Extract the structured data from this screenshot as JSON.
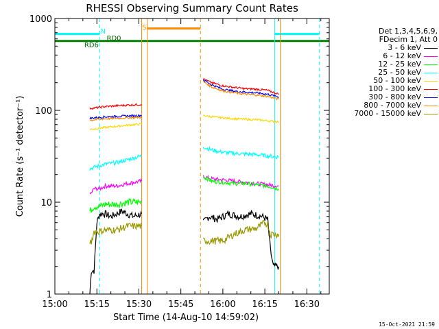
{
  "chart_data": {
    "type": "line",
    "title": "RHESSI Observing Summary Count Rates",
    "xlabel": "Start Time (14-Aug-10 14:59:02)",
    "ylabel": "Count Rate (s⁻¹ detector⁻¹)",
    "x_units": "minutes since 15:00",
    "xlim": [
      0,
      98
    ],
    "ylim": [
      1,
      1000
    ],
    "yscale": "log",
    "x_ticks": [
      {
        "value": 0,
        "label": "15:00"
      },
      {
        "value": 15,
        "label": "15:15"
      },
      {
        "value": 30,
        "label": "15:30"
      },
      {
        "value": 45,
        "label": "15:45"
      },
      {
        "value": 60,
        "label": "16:00"
      },
      {
        "value": 75,
        "label": "16:15"
      },
      {
        "value": 90,
        "label": "16:30"
      }
    ],
    "y_ticks": [
      {
        "value": 1,
        "label": "1"
      },
      {
        "value": 10,
        "label": "10"
      },
      {
        "value": 100,
        "label": "100"
      },
      {
        "value": 1000,
        "label": "1000"
      }
    ],
    "legend_header": [
      "Det 1,3,4,5,6,9,",
      "FDecim 1, Att 0"
    ],
    "series": [
      {
        "name": "3 - 6 keV",
        "color": "#000000",
        "segments": [
          [
            [
              12.5,
              1
            ],
            [
              13,
              1.8
            ],
            [
              14,
              1.8
            ],
            [
              15,
              6
            ],
            [
              16,
              7.5
            ],
            [
              18,
              7.5
            ],
            [
              20,
              7
            ],
            [
              24,
              8
            ],
            [
              28,
              7
            ],
            [
              31,
              7.5
            ]
          ],
          [
            [
              53,
              6
            ],
            [
              55,
              7
            ],
            [
              58,
              6.5
            ],
            [
              62,
              7.5
            ],
            [
              66,
              7
            ],
            [
              70,
              7.5
            ],
            [
              74,
              7
            ],
            [
              76,
              6.5
            ],
            [
              77,
              3
            ],
            [
              78,
              2
            ],
            [
              80,
              2
            ]
          ]
        ]
      },
      {
        "name": "6 - 12 keV",
        "color": "#ff00ff",
        "segments": [
          [
            [
              12.5,
              12
            ],
            [
              14,
              14
            ],
            [
              16,
              14
            ],
            [
              18,
              15
            ],
            [
              22,
              15
            ],
            [
              26,
              16
            ],
            [
              31,
              17
            ]
          ],
          [
            [
              53,
              19
            ],
            [
              56,
              18
            ],
            [
              60,
              17.5
            ],
            [
              64,
              17
            ],
            [
              68,
              16.5
            ],
            [
              72,
              16
            ],
            [
              76,
              15.5
            ],
            [
              80,
              15
            ]
          ]
        ]
      },
      {
        "name": "12 - 25 keV",
        "color": "#00ff00",
        "segments": [
          [
            [
              12.5,
              8
            ],
            [
              14,
              9
            ],
            [
              16,
              9
            ],
            [
              18,
              9.5
            ],
            [
              22,
              9.5
            ],
            [
              26,
              10
            ],
            [
              31,
              10
            ]
          ],
          [
            [
              53,
              19
            ],
            [
              56,
              17
            ],
            [
              60,
              16.5
            ],
            [
              64,
              16
            ],
            [
              68,
              16
            ],
            [
              72,
              15.5
            ],
            [
              76,
              15
            ],
            [
              80,
              14
            ]
          ]
        ]
      },
      {
        "name": "25 - 50 keV",
        "color": "#00ffff",
        "segments": [
          [
            [
              12.5,
              23
            ],
            [
              14,
              24
            ],
            [
              16,
              25
            ],
            [
              18,
              26
            ],
            [
              22,
              27
            ],
            [
              26,
              29
            ],
            [
              31,
              32
            ]
          ],
          [
            [
              53,
              40
            ],
            [
              56,
              37
            ],
            [
              60,
              35
            ],
            [
              64,
              34
            ],
            [
              68,
              33.5
            ],
            [
              72,
              33
            ],
            [
              76,
              32
            ],
            [
              80,
              31
            ]
          ]
        ]
      },
      {
        "name": "50 - 100 keV",
        "color": "#ffd700",
        "segments": [
          [
            [
              12.5,
              62
            ],
            [
              14,
              63
            ],
            [
              16,
              64
            ],
            [
              18,
              65
            ],
            [
              22,
              67
            ],
            [
              26,
              69
            ],
            [
              31,
              71
            ]
          ],
          [
            [
              53,
              88
            ],
            [
              56,
              85
            ],
            [
              60,
              83
            ],
            [
              64,
              81
            ],
            [
              68,
              80
            ],
            [
              72,
              79
            ],
            [
              76,
              77
            ],
            [
              80,
              75
            ]
          ]
        ]
      },
      {
        "name": "100 - 300 keV",
        "color": "#ff0000",
        "segments": [
          [
            [
              12.5,
              105
            ],
            [
              14,
              106
            ],
            [
              16,
              108
            ],
            [
              18,
              110
            ],
            [
              22,
              112
            ],
            [
              26,
              114
            ],
            [
              31,
              116
            ]
          ],
          [
            [
              53,
              220
            ],
            [
              56,
              200
            ],
            [
              60,
              185
            ],
            [
              64,
              178
            ],
            [
              68,
              172
            ],
            [
              72,
              170
            ],
            [
              76,
              165
            ],
            [
              80,
              150
            ]
          ]
        ]
      },
      {
        "name": "300 - 800 keV",
        "color": "#0000ff",
        "segments": [
          [
            [
              12.5,
              82
            ],
            [
              14,
              83
            ],
            [
              16,
              84
            ],
            [
              18,
              85
            ],
            [
              22,
              86
            ],
            [
              26,
              87
            ],
            [
              31,
              88
            ]
          ],
          [
            [
              53,
              215
            ],
            [
              56,
              190
            ],
            [
              60,
              170
            ],
            [
              64,
              162
            ],
            [
              68,
              158
            ],
            [
              72,
              155
            ],
            [
              76,
              150
            ],
            [
              80,
              140
            ]
          ]
        ]
      },
      {
        "name": "800 - 7000 keV",
        "color": "#ff8c00",
        "segments": [
          [
            [
              12.5,
              78
            ],
            [
              14,
              79
            ],
            [
              16,
              80
            ],
            [
              18,
              81
            ],
            [
              22,
              82
            ],
            [
              26,
              83
            ],
            [
              31,
              84
            ]
          ],
          [
            [
              53,
              205
            ],
            [
              56,
              180
            ],
            [
              60,
              163
            ],
            [
              64,
              155
            ],
            [
              68,
              150
            ],
            [
              72,
              147
            ],
            [
              76,
              142
            ],
            [
              80,
              132
            ]
          ]
        ]
      },
      {
        "name": "7000 - 15000 keV",
        "color": "#999900",
        "segments": [
          [
            [
              12.5,
              3.7
            ],
            [
              13,
              3.7
            ],
            [
              14,
              4.8
            ],
            [
              16,
              4.8
            ],
            [
              18,
              5
            ],
            [
              22,
              5
            ],
            [
              26,
              5.5
            ],
            [
              31,
              5.5
            ]
          ],
          [
            [
              53,
              3.8
            ],
            [
              56,
              3.8
            ],
            [
              60,
              3.8
            ],
            [
              64,
              4.5
            ],
            [
              68,
              5
            ],
            [
              72,
              5.2
            ],
            [
              75,
              6
            ],
            [
              76,
              5.8
            ],
            [
              77,
              4.5
            ],
            [
              79,
              4.5
            ],
            [
              80,
              4.5
            ]
          ]
        ]
      }
    ],
    "annotations": [
      {
        "label": "N",
        "x": 16.3,
        "color": "#00ffff"
      },
      {
        "label": "RD0",
        "x": 18.5,
        "color": "#006400"
      },
      {
        "label": "RD6",
        "x": 10.5,
        "color": "#006400"
      },
      {
        "label": "S",
        "x": 31.2,
        "color": "#ff8c00"
      }
    ],
    "flag_bars": [
      {
        "name": "night",
        "color": "#00ffff",
        "x_start": 0,
        "x_end": 16,
        "y": 680
      },
      {
        "name": "night",
        "color": "#00ffff",
        "x_start": 78.5,
        "x_end": 94.5,
        "y": 680
      },
      {
        "name": "saa",
        "color": "#ff8c00",
        "x_start": 33,
        "x_end": 52,
        "y": 780
      },
      {
        "name": "decimation",
        "color": "#008000",
        "x_start": 0,
        "x_end": 98,
        "y": 570
      }
    ],
    "vlines": [
      {
        "x": 16,
        "color": "#00ffff",
        "style": "dashed"
      },
      {
        "x": 31,
        "color": "#ff8c00",
        "style": "solid"
      },
      {
        "x": 33,
        "color": "#ff8c00",
        "style": "solid"
      },
      {
        "x": 52,
        "color": "#ff8c00",
        "style": "dashed"
      },
      {
        "x": 78.5,
        "color": "#00ffff",
        "style": "solid"
      },
      {
        "x": 80.5,
        "color": "#ff8c00",
        "style": "solid"
      },
      {
        "x": 94.5,
        "color": "#00ffff",
        "style": "dashed"
      }
    ]
  },
  "timestamp": "15-Oct-2021 21:59"
}
